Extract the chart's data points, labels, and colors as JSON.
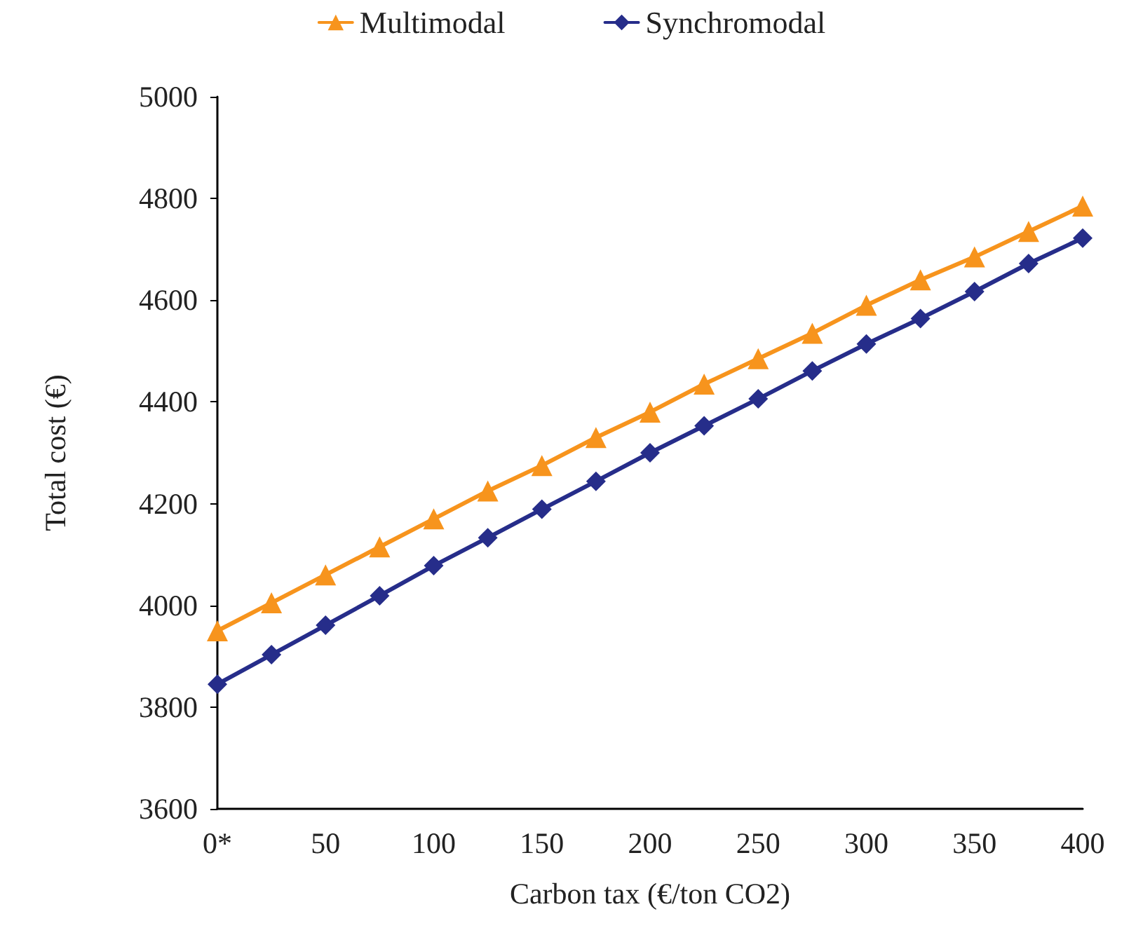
{
  "chart_data": {
    "type": "line",
    "xlabel": "Carbon tax (€/ton CO2)",
    "ylabel": "Total cost (€)",
    "categories": [
      "0*",
      null,
      "50",
      null,
      "100",
      null,
      "150",
      null,
      "200",
      null,
      "250",
      null,
      "300",
      null,
      "350",
      null,
      "400"
    ],
    "series": [
      {
        "name": "Multimodal",
        "color": "#f7941d",
        "marker": "triangle",
        "values": [
          3950,
          4005,
          4060,
          4115,
          4170,
          4225,
          4275,
          4330,
          4380,
          4435,
          4485,
          4535,
          4590,
          4640,
          4685,
          4735,
          4785
        ]
      },
      {
        "name": "Synchromodal",
        "color": "#262d8a",
        "marker": "diamond",
        "values": [
          3845,
          3903,
          3961,
          4019,
          4078,
          4133,
          4189,
          4244,
          4300,
          4353,
          4406,
          4461,
          4514,
          4564,
          4617,
          4672,
          4722
        ]
      }
    ],
    "ylim": [
      3600,
      5000
    ],
    "yticks": [
      3600,
      3800,
      4000,
      4200,
      4400,
      4600,
      4800,
      5000
    ],
    "grid": false,
    "legend": "top",
    "line_style": "solid"
  }
}
